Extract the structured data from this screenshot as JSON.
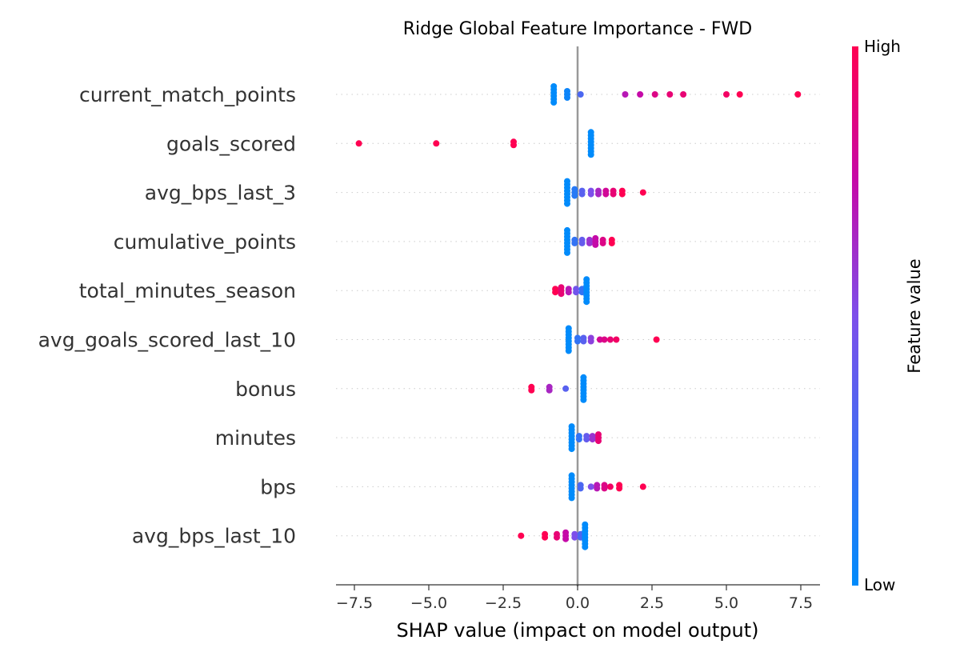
{
  "chart_data": {
    "type": "scatter",
    "subtype": "shap-beeswarm",
    "title": "Ridge Global Feature Importance - FWD",
    "xlabel": "SHAP value (impact on model output)",
    "ylabel": "",
    "xlim": [
      -8.1,
      8.1
    ],
    "xticks": [
      -7.5,
      -5.0,
      -2.5,
      0.0,
      2.5,
      5.0,
      7.5
    ],
    "xtick_labels": [
      "−7.5",
      "−5.0",
      "−2.5",
      "0.0",
      "2.5",
      "5.0",
      "7.5"
    ],
    "grid": false,
    "colorbar": {
      "label": "Feature value",
      "high_label": "High",
      "low_label": "Low",
      "low_color": "#008bfb",
      "high_color": "#ff0052"
    },
    "features": [
      {
        "name": "current_match_points",
        "points": [
          {
            "x": -0.8,
            "v": 0.0,
            "n": 6
          },
          {
            "x": -0.35,
            "v": 0.05,
            "n": 3
          },
          {
            "x": 0.1,
            "v": 0.3,
            "n": 1
          },
          {
            "x": 1.6,
            "v": 0.7
          },
          {
            "x": 2.1,
            "v": 0.75
          },
          {
            "x": 2.6,
            "v": 0.85
          },
          {
            "x": 3.1,
            "v": 0.9
          },
          {
            "x": 3.55,
            "v": 0.9
          },
          {
            "x": 5.0,
            "v": 0.95
          },
          {
            "x": 5.45,
            "v": 1.0
          },
          {
            "x": 7.4,
            "v": 1.0
          }
        ]
      },
      {
        "name": "goals_scored",
        "points": [
          {
            "x": -7.35,
            "v": 1.0
          },
          {
            "x": -4.75,
            "v": 1.0
          },
          {
            "x": -2.15,
            "v": 1.0,
            "n": 2
          },
          {
            "x": 0.45,
            "v": 0.0,
            "n": 8
          }
        ]
      },
      {
        "name": "avg_bps_last_3",
        "points": [
          {
            "x": -0.35,
            "v": 0.0,
            "n": 8
          },
          {
            "x": -0.1,
            "v": 0.15,
            "n": 3
          },
          {
            "x": 0.15,
            "v": 0.35,
            "n": 2
          },
          {
            "x": 0.45,
            "v": 0.5,
            "n": 2
          },
          {
            "x": 0.7,
            "v": 0.65,
            "n": 2
          },
          {
            "x": 0.95,
            "v": 0.8,
            "n": 2
          },
          {
            "x": 1.2,
            "v": 0.9,
            "n": 2
          },
          {
            "x": 1.5,
            "v": 1.0,
            "n": 2
          },
          {
            "x": 2.2,
            "v": 1.0
          }
        ]
      },
      {
        "name": "cumulative_points",
        "points": [
          {
            "x": -0.35,
            "v": 0.0,
            "n": 8
          },
          {
            "x": -0.1,
            "v": 0.2,
            "n": 2
          },
          {
            "x": 0.15,
            "v": 0.4,
            "n": 2
          },
          {
            "x": 0.4,
            "v": 0.6,
            "n": 2
          },
          {
            "x": 0.6,
            "v": 0.75,
            "n": 3
          },
          {
            "x": 0.85,
            "v": 0.85,
            "n": 2
          },
          {
            "x": 1.15,
            "v": 1.0,
            "n": 2
          }
        ]
      },
      {
        "name": "total_minutes_season",
        "points": [
          {
            "x": -0.75,
            "v": 1.0,
            "n": 2
          },
          {
            "x": -0.55,
            "v": 0.9,
            "n": 3
          },
          {
            "x": -0.3,
            "v": 0.7,
            "n": 2
          },
          {
            "x": -0.05,
            "v": 0.45,
            "n": 2
          },
          {
            "x": 0.15,
            "v": 0.2,
            "n": 2
          },
          {
            "x": 0.3,
            "v": 0.0,
            "n": 8
          }
        ]
      },
      {
        "name": "avg_goals_scored_last_10",
        "points": [
          {
            "x": -0.3,
            "v": 0.0,
            "n": 8
          },
          {
            "x": 0.0,
            "v": 0.2,
            "n": 2
          },
          {
            "x": 0.2,
            "v": 0.35,
            "n": 2
          },
          {
            "x": 0.45,
            "v": 0.55,
            "n": 2
          },
          {
            "x": 0.75,
            "v": 0.8
          },
          {
            "x": 0.9,
            "v": 0.85
          },
          {
            "x": 1.1,
            "v": 0.9
          },
          {
            "x": 1.3,
            "v": 0.95
          },
          {
            "x": 2.65,
            "v": 1.0
          }
        ]
      },
      {
        "name": "bonus",
        "points": [
          {
            "x": -1.55,
            "v": 1.0,
            "n": 2
          },
          {
            "x": -0.95,
            "v": 0.65,
            "n": 2
          },
          {
            "x": -0.4,
            "v": 0.35
          },
          {
            "x": 0.2,
            "v": 0.0,
            "n": 8
          }
        ]
      },
      {
        "name": "minutes",
        "points": [
          {
            "x": -0.2,
            "v": 0.0,
            "n": 8
          },
          {
            "x": 0.05,
            "v": 0.2,
            "n": 2
          },
          {
            "x": 0.3,
            "v": 0.4,
            "n": 2
          },
          {
            "x": 0.5,
            "v": 0.6,
            "n": 2
          },
          {
            "x": 0.7,
            "v": 0.9,
            "n": 3
          }
        ]
      },
      {
        "name": "bps",
        "points": [
          {
            "x": -0.2,
            "v": 0.0,
            "n": 8
          },
          {
            "x": 0.1,
            "v": 0.3,
            "n": 2
          },
          {
            "x": 0.45,
            "v": 0.5
          },
          {
            "x": 0.65,
            "v": 0.7,
            "n": 2
          },
          {
            "x": 0.9,
            "v": 0.85,
            "n": 2
          },
          {
            "x": 1.1,
            "v": 0.95
          },
          {
            "x": 1.4,
            "v": 1.0,
            "n": 2
          },
          {
            "x": 2.2,
            "v": 1.0
          }
        ]
      },
      {
        "name": "avg_bps_last_10",
        "points": [
          {
            "x": -1.9,
            "v": 1.0
          },
          {
            "x": -1.1,
            "v": 1.0,
            "n": 2
          },
          {
            "x": -0.7,
            "v": 0.9,
            "n": 2
          },
          {
            "x": -0.4,
            "v": 0.75,
            "n": 3
          },
          {
            "x": -0.1,
            "v": 0.5,
            "n": 2
          },
          {
            "x": 0.1,
            "v": 0.3,
            "n": 2
          },
          {
            "x": 0.25,
            "v": 0.0,
            "n": 8
          }
        ]
      }
    ]
  }
}
